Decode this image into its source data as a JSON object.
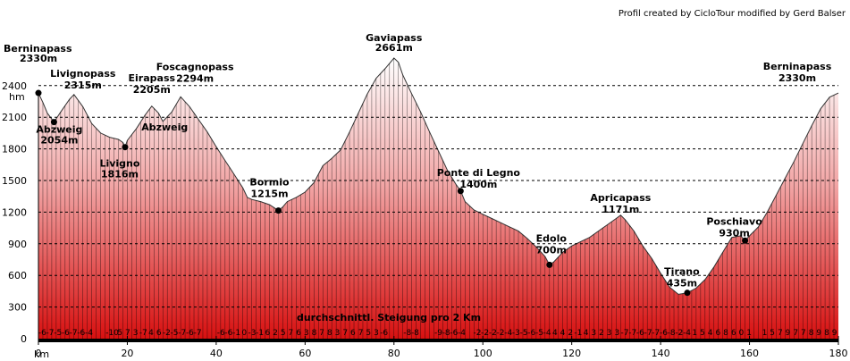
{
  "credit": "Profil created by CicloTour modified by Gerd Balser",
  "chart_data": {
    "type": "area",
    "ylabel": "hm",
    "xlabel": "km",
    "xlim": [
      0,
      180
    ],
    "ylim": [
      0,
      2661
    ],
    "xticks": [
      0,
      20,
      40,
      60,
      80,
      100,
      120,
      140,
      160,
      180
    ],
    "yticks": [
      0,
      300,
      600,
      900,
      1200,
      1500,
      1800,
      2100,
      2400
    ],
    "grid": "horizontal-dashed",
    "note": "durchschnittl. Steigung pro 2 Km",
    "profile": [
      [
        0,
        2330
      ],
      [
        1,
        2240
      ],
      [
        2,
        2140
      ],
      [
        3.5,
        2054
      ],
      [
        5,
        2150
      ],
      [
        7,
        2270
      ],
      [
        8,
        2315
      ],
      [
        10,
        2200
      ],
      [
        12,
        2040
      ],
      [
        14,
        1950
      ],
      [
        16,
        1910
      ],
      [
        18,
        1890
      ],
      [
        19,
        1860
      ],
      [
        19.5,
        1816
      ],
      [
        20,
        1880
      ],
      [
        22,
        1990
      ],
      [
        24,
        2120
      ],
      [
        25.5,
        2205
      ],
      [
        27,
        2140
      ],
      [
        28,
        2060
      ],
      [
        30,
        2150
      ],
      [
        32,
        2294
      ],
      [
        34,
        2200
      ],
      [
        36,
        2080
      ],
      [
        38,
        1960
      ],
      [
        40,
        1820
      ],
      [
        42,
        1690
      ],
      [
        44,
        1560
      ],
      [
        46,
        1430
      ],
      [
        47,
        1340
      ],
      [
        48,
        1320
      ],
      [
        50,
        1300
      ],
      [
        52,
        1270
      ],
      [
        54,
        1215
      ],
      [
        55,
        1250
      ],
      [
        56,
        1300
      ],
      [
        58,
        1340
      ],
      [
        60,
        1390
      ],
      [
        62,
        1480
      ],
      [
        64,
        1640
      ],
      [
        66,
        1710
      ],
      [
        68,
        1790
      ],
      [
        70,
        1960
      ],
      [
        72,
        2140
      ],
      [
        74,
        2320
      ],
      [
        76,
        2470
      ],
      [
        78,
        2560
      ],
      [
        80,
        2661
      ],
      [
        81,
        2620
      ],
      [
        82,
        2500
      ],
      [
        84,
        2320
      ],
      [
        86,
        2150
      ],
      [
        88,
        1960
      ],
      [
        90,
        1780
      ],
      [
        92,
        1600
      ],
      [
        94,
        1460
      ],
      [
        95,
        1400
      ],
      [
        96,
        1300
      ],
      [
        98,
        1220
      ],
      [
        100,
        1180
      ],
      [
        102,
        1140
      ],
      [
        104,
        1100
      ],
      [
        106,
        1060
      ],
      [
        108,
        1020
      ],
      [
        110,
        950
      ],
      [
        112,
        870
      ],
      [
        114,
        780
      ],
      [
        115,
        700
      ],
      [
        116,
        730
      ],
      [
        118,
        820
      ],
      [
        120,
        880
      ],
      [
        122,
        920
      ],
      [
        124,
        960
      ],
      [
        126,
        1020
      ],
      [
        128,
        1080
      ],
      [
        130,
        1140
      ],
      [
        131,
        1171
      ],
      [
        132,
        1130
      ],
      [
        134,
        1020
      ],
      [
        136,
        880
      ],
      [
        138,
        760
      ],
      [
        140,
        620
      ],
      [
        142,
        490
      ],
      [
        144,
        420
      ],
      [
        146,
        435
      ],
      [
        148,
        480
      ],
      [
        150,
        560
      ],
      [
        152,
        680
      ],
      [
        154,
        820
      ],
      [
        156,
        960
      ],
      [
        158,
        975
      ],
      [
        159,
        930
      ],
      [
        160,
        975
      ],
      [
        162,
        1060
      ],
      [
        164,
        1200
      ],
      [
        166,
        1360
      ],
      [
        168,
        1520
      ],
      [
        170,
        1680
      ],
      [
        172,
        1850
      ],
      [
        174,
        2020
      ],
      [
        176,
        2180
      ],
      [
        178,
        2290
      ],
      [
        180,
        2330
      ]
    ],
    "points": [
      {
        "name": "Berninapass",
        "elev": "2330m",
        "x": 0,
        "y": 2330,
        "dot": true
      },
      {
        "name": "Livignopass",
        "elev": "2315m",
        "x": 8,
        "y": 2315,
        "dot": false
      },
      {
        "name": "Abzweig",
        "elev": "2054m",
        "x": 3.5,
        "y": 2054,
        "dot": true
      },
      {
        "name": "Livigno",
        "elev": "1816m",
        "x": 19.5,
        "y": 1816,
        "dot": true
      },
      {
        "name": "Eirapass",
        "elev": "2205m",
        "x": 25.5,
        "y": 2205,
        "dot": false
      },
      {
        "name": "Abzweig",
        "elev": "",
        "x": 28,
        "y": 2060,
        "dot": false
      },
      {
        "name": "Foscagnopass",
        "elev": "2294m",
        "x": 32,
        "y": 2294,
        "dot": false
      },
      {
        "name": "Bormio",
        "elev": "1215m",
        "x": 54,
        "y": 1215,
        "dot": true
      },
      {
        "name": "Gaviapass",
        "elev": "2661m",
        "x": 80,
        "y": 2661,
        "dot": false
      },
      {
        "name": "Ponte di Legno",
        "elev": "1400m",
        "x": 95,
        "y": 1400,
        "dot": true
      },
      {
        "name": "Edolo",
        "elev": "700m",
        "x": 115,
        "y": 700,
        "dot": true
      },
      {
        "name": "Apricapass",
        "elev": "1171m",
        "x": 131,
        "y": 1171,
        "dot": false
      },
      {
        "name": "Tirano",
        "elev": "435m",
        "x": 146,
        "y": 435,
        "dot": true
      },
      {
        "name": "Poschiavo",
        "elev": "930m",
        "x": 159,
        "y": 930,
        "dot": true
      },
      {
        "name": "Berninapass",
        "elev": "2330m",
        "x": 180,
        "y": 2330,
        "dot": false
      }
    ],
    "gradients": [
      "-6",
      "-7",
      "-5",
      "-6",
      "-7",
      "-6",
      "-4",
      "",
      "",
      "-10",
      "5",
      "7",
      "3",
      "-7",
      "4",
      "6",
      "-2",
      "-5",
      "-7",
      "-6",
      "-7",
      "",
      "",
      "-6",
      "-6",
      "-1",
      "0",
      "-3",
      "-1",
      "6",
      "2",
      "5",
      "7",
      "6",
      "3",
      "8",
      "7",
      "8",
      "3",
      "7",
      "6",
      "7",
      "5",
      "3",
      "-6",
      "",
      "",
      "-8",
      "-8",
      "",
      "",
      "-9",
      "-8",
      "-6",
      "-4",
      "",
      "-2",
      "-2",
      "-2",
      "-2",
      "-4",
      "-3",
      "-5",
      "-6",
      "-5",
      "-4",
      "4",
      "4",
      "2",
      "-1",
      "4",
      "3",
      "2",
      "3",
      "3",
      "-7",
      "-7",
      "-6",
      "-7",
      "-7",
      "-6",
      "-8",
      "-2",
      "-4",
      "1",
      "5",
      "4",
      "6",
      "8",
      "6",
      "0",
      "1",
      "",
      "1",
      "5",
      "7",
      "9",
      "7",
      "7",
      "8",
      "9",
      "8",
      "9"
    ]
  }
}
